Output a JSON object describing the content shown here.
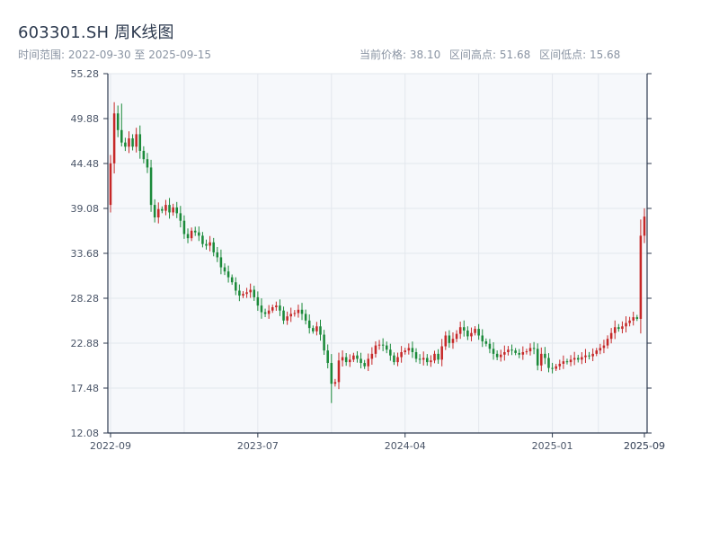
{
  "header": {
    "title": "603301.SH 周K线图",
    "range_label": "时间范围: 2022-09-30 至 2025-09-15",
    "price_label": "当前价格: 38.10",
    "high_label": "区间高点: 51.68",
    "low_label": "区间低点: 15.68"
  },
  "colors": {
    "up": "#c62828",
    "down": "#1b8a3a",
    "plot_bg": "#f6f8fb",
    "grid": "#e3e7ed",
    "axis": "#2d3a4f"
  },
  "chart_data": {
    "type": "candlestick",
    "title": "603301.SH 周K线图",
    "ylim": [
      12.08,
      55.28
    ],
    "y_ticks": [
      12.08,
      17.48,
      22.88,
      28.28,
      33.68,
      39.08,
      44.48,
      49.88,
      55.28
    ],
    "x_ticks": [
      {
        "label": "2022-09",
        "idx": 0
      },
      {
        "label": "2023-07",
        "idx": 40
      },
      {
        "label": "2024-04",
        "idx": 80
      },
      {
        "label": "2025-01",
        "idx": 120
      },
      {
        "label": "2025-09",
        "idx": 159
      },
      {
        "label": "2025-09",
        "idx": 160
      }
    ],
    "grid": true,
    "start_date": "2022-09-30",
    "end_date": "2025-09-15",
    "current_price": 38.1,
    "range_high": 51.68,
    "range_low": 15.68,
    "close_series": [
      44.5,
      50.5,
      48.5,
      47.0,
      46.5,
      47.5,
      46.5,
      48.0,
      46.0,
      45.0,
      44.0,
      39.5,
      38.0,
      39.0,
      38.8,
      39.5,
      38.6,
      39.2,
      38.5,
      37.6,
      36.0,
      35.5,
      36.4,
      36.2,
      35.8,
      34.8,
      34.6,
      35.0,
      33.8,
      33.2,
      32.0,
      31.5,
      30.8,
      30.2,
      29.2,
      28.6,
      28.8,
      29.0,
      29.3,
      28.4,
      27.4,
      26.6,
      26.4,
      26.8,
      27.2,
      27.4,
      26.8,
      25.6,
      26.1,
      26.4,
      26.5,
      26.9,
      26.4,
      25.6,
      24.7,
      24.3,
      24.9,
      23.9,
      22.0,
      20.5,
      18.0,
      18.2,
      20.8,
      21.2,
      20.6,
      20.9,
      21.4,
      21.0,
      20.5,
      20.1,
      21.0,
      21.6,
      22.6,
      22.7,
      22.6,
      22.1,
      21.4,
      20.6,
      21.2,
      21.8,
      22.0,
      22.3,
      21.8,
      21.0,
      20.9,
      21.1,
      20.6,
      20.8,
      21.6,
      20.9,
      22.5,
      23.8,
      22.9,
      23.4,
      24.0,
      24.8,
      24.4,
      23.7,
      24.1,
      24.6,
      23.8,
      23.1,
      22.8,
      22.2,
      21.6,
      21.2,
      21.5,
      21.8,
      22.1,
      22.0,
      21.7,
      21.5,
      21.8,
      21.9,
      22.3,
      22.2,
      20.2,
      21.6,
      21.1,
      19.9,
      19.8,
      20.1,
      20.4,
      20.7,
      20.6,
      20.9,
      21.1,
      20.9,
      21.2,
      21.4,
      21.3,
      21.6,
      22.0,
      22.3,
      22.6,
      23.4,
      24.1,
      24.8,
      24.6,
      24.9,
      25.3,
      25.6,
      26.0,
      25.8,
      35.8,
      38.1
    ]
  }
}
